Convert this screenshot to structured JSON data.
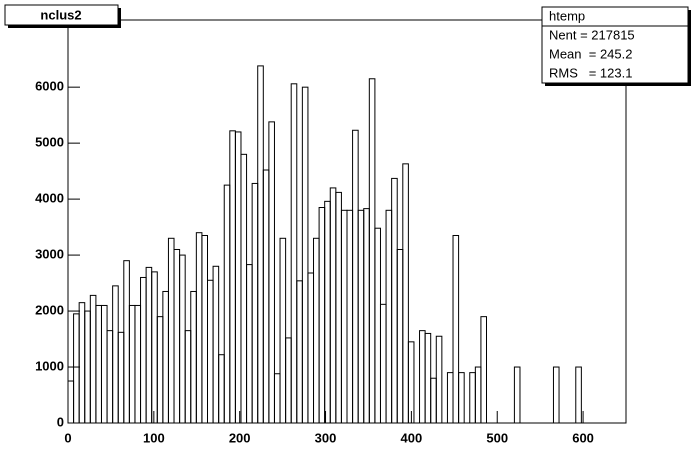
{
  "chart_data": {
    "type": "histogram",
    "title": "nclus2",
    "stats": {
      "name": "htemp",
      "entries": "Nent = 217815",
      "mean": "Mean  = 245.2",
      "rms": "RMS   = 123.1"
    },
    "bins": [
      0,
      6.5,
      13,
      19.5,
      26,
      32.5,
      39,
      45.5,
      52,
      58.5,
      65,
      71.5,
      78,
      84.5,
      91,
      97.5,
      104,
      110.5,
      117,
      123.5,
      130,
      136.5,
      143,
      149.5,
      156,
      162.5,
      169,
      175.5,
      182,
      188.5,
      195,
      201.5,
      208,
      214.5,
      221,
      227.5,
      234,
      240.5,
      247,
      253.5,
      260,
      266.5,
      273,
      279.5,
      286,
      292.5,
      299,
      305.5,
      312,
      318.5,
      325,
      331.5,
      338,
      344.5,
      351,
      357.5,
      364,
      370.5,
      377,
      383.5,
      390,
      396.5,
      403,
      409.5,
      416,
      422.5,
      429,
      435.5,
      442,
      448.5,
      455,
      461.5,
      468,
      474.5,
      481,
      487.5,
      494,
      500.5,
      507,
      513.5,
      520,
      526.5,
      533,
      539.5,
      546,
      552.5,
      559,
      565.5,
      572,
      578.5,
      585,
      591.5,
      598,
      604.5,
      611,
      617.5,
      624,
      630.5,
      637,
      643.5,
      650
    ],
    "values": [
      750,
      1950,
      2150,
      2000,
      2280,
      2100,
      2100,
      1650,
      2450,
      1620,
      2900,
      2100,
      2100,
      2600,
      2780,
      2700,
      1900,
      2350,
      3300,
      3100,
      3000,
      1650,
      2350,
      3400,
      3350,
      2550,
      2800,
      1220,
      4250,
      5220,
      5200,
      4800,
      2830,
      4280,
      6380,
      4520,
      5380,
      880,
      3300,
      1520,
      6060,
      2540,
      6000,
      2680,
      3300,
      3850,
      3960,
      4200,
      4120,
      3800,
      3800,
      5230,
      3800,
      3830,
      6150,
      3480,
      2120,
      3800,
      4370,
      3100,
      4630,
      1450,
      0,
      1650,
      1600,
      800,
      1550,
      0,
      900,
      3350,
      900,
      0,
      900,
      1000,
      1900,
      0,
      0,
      0,
      0,
      0,
      1000,
      0,
      0,
      0,
      0,
      0,
      0,
      1000,
      0,
      0,
      0,
      1000,
      0,
      0,
      0,
      0,
      0,
      0,
      0,
      0
    ],
    "color": "#000000",
    "xlim": [
      0,
      650
    ],
    "xticks": [
      0,
      100,
      200,
      300,
      400,
      500,
      600
    ],
    "ylim": [
      0,
      7200
    ],
    "yticks": [
      0,
      1000,
      2000,
      3000,
      4000,
      5000,
      6000
    ]
  }
}
